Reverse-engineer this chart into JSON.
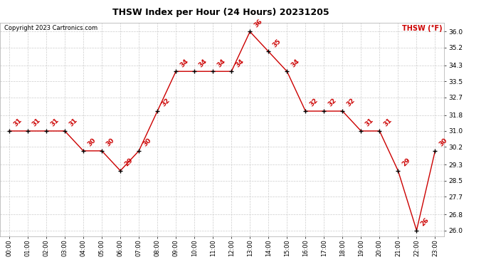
{
  "title": "THSW Index per Hour (24 Hours) 20231205",
  "copyright": "Copyright 2023 Cartronics.com",
  "legend_label": "THSW (°F)",
  "hours": [
    0,
    1,
    2,
    3,
    4,
    5,
    6,
    7,
    8,
    9,
    10,
    11,
    12,
    13,
    14,
    15,
    16,
    17,
    18,
    19,
    20,
    21,
    22,
    23
  ],
  "values": [
    31,
    31,
    31,
    31,
    30,
    30,
    29,
    30,
    32,
    34,
    34,
    34,
    34,
    36,
    35,
    34,
    32,
    32,
    32,
    31,
    31,
    29,
    26,
    30
  ],
  "x_labels": [
    "00:00",
    "01:00",
    "02:00",
    "03:00",
    "04:00",
    "05:00",
    "06:00",
    "07:00",
    "08:00",
    "09:00",
    "10:00",
    "11:00",
    "12:00",
    "13:00",
    "14:00",
    "15:00",
    "16:00",
    "17:00",
    "18:00",
    "19:00",
    "20:00",
    "21:00",
    "22:00",
    "23:00"
  ],
  "line_color": "#cc0000",
  "marker_color": "#000000",
  "label_color": "#cc0000",
  "title_color": "#000000",
  "copyright_color": "#000000",
  "legend_color": "#cc0000",
  "background_color": "#ffffff",
  "grid_color": "#cccccc",
  "ylim_min": 25.7,
  "ylim_max": 36.45,
  "yticks": [
    26.0,
    26.8,
    27.7,
    28.5,
    29.3,
    30.2,
    31.0,
    31.8,
    32.7,
    33.5,
    34.3,
    35.2,
    36.0
  ]
}
